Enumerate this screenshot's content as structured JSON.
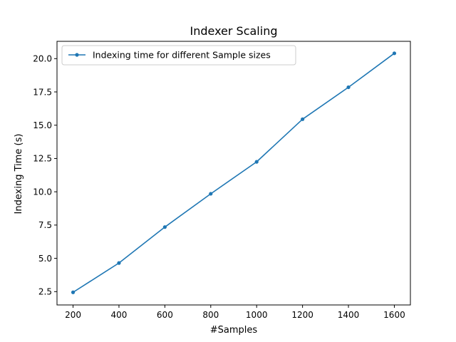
{
  "chart_data": {
    "type": "line",
    "title": "Indexer Scaling",
    "xlabel": "#Samples",
    "ylabel": "Indexing Time (s)",
    "x": [
      200,
      400,
      600,
      800,
      1000,
      1200,
      1400,
      1600
    ],
    "series": [
      {
        "name": "Indexing time for different Sample sizes",
        "color": "#1f77b4",
        "values": [
          2.45,
          4.65,
          7.35,
          9.85,
          12.25,
          15.45,
          17.85,
          20.4
        ]
      }
    ],
    "xlim": [
      130,
      1670
    ],
    "ylim": [
      1.5,
      21.3
    ],
    "xticks": [
      200,
      400,
      600,
      800,
      1000,
      1200,
      1400,
      1600
    ],
    "yticks": [
      2.5,
      5.0,
      7.5,
      10.0,
      12.5,
      15.0,
      17.5,
      20.0
    ],
    "xtick_labels": [
      "200",
      "400",
      "600",
      "800",
      "1000",
      "1200",
      "1400",
      "1600"
    ],
    "ytick_labels": [
      "2.5",
      "5.0",
      "7.5",
      "10.0",
      "12.5",
      "15.0",
      "17.5",
      "20.0"
    ],
    "grid": false,
    "legend_position": "top-left"
  }
}
